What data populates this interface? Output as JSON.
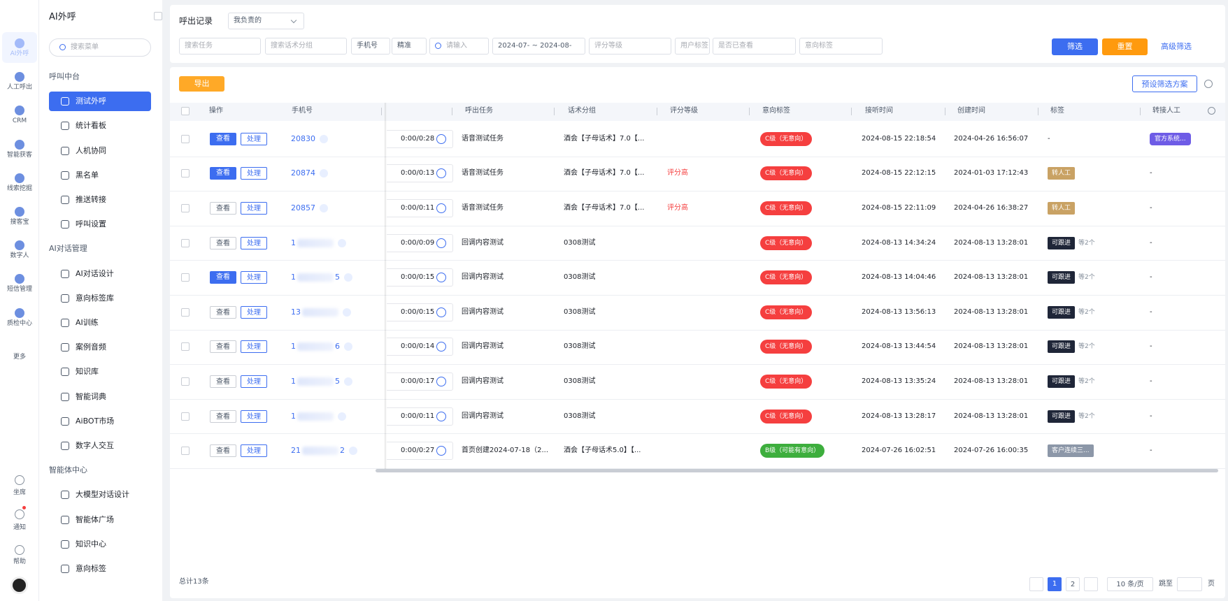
{
  "rail": {
    "items": [
      "AI外呼",
      "人工呼出",
      "CRM",
      "智能获客",
      "线索挖掘",
      "搜客宝",
      "数字人",
      "短信管理",
      "质检中心",
      "更多"
    ],
    "bottom": [
      "坐席",
      "通知",
      "帮助"
    ]
  },
  "sidebar": {
    "title": "AI外呼",
    "search": "搜索菜单",
    "groups": [
      {
        "title": "呼叫中台",
        "items": [
          "测试外呼",
          "统计看板",
          "人机协同",
          "黑名单",
          "推送转接",
          "呼叫设置"
        ]
      },
      {
        "title": "AI对话管理",
        "items": [
          "AI对话设计",
          "意向标签库",
          "AI训练",
          "案例音频",
          "知识库",
          "智能词典",
          "AiBOT市场",
          "数字人交互"
        ]
      },
      {
        "title": "智能体中心",
        "items": [
          "大模型对话设计",
          "智能体广场",
          "知识中心",
          "意向标签"
        ]
      }
    ]
  },
  "header": {
    "title": "呼出记录",
    "scope": "我负责的"
  },
  "filters": {
    "fields": [
      "搜索任务",
      "搜索话术分组",
      "手机号",
      "精准",
      "请输入",
      "2024-07- ~ 2024-08-",
      "评分等级",
      "用户标签",
      "是否已查看",
      "意向标签"
    ],
    "filter": "筛选",
    "reset": "重置",
    "advanced": "高级筛选"
  },
  "toolbar": {
    "export": "导出",
    "preset": "预设筛选方案"
  },
  "table": {
    "columns": [
      "操作",
      "手机号",
      "呼出任务",
      "话术分组",
      "评分等级",
      "意向标签",
      "接听时间",
      "创建时间",
      "标签",
      "转接人工"
    ],
    "rows": [
      {
        "view": "查看",
        "handle": "处理",
        "viewed": true,
        "phone": "20830",
        "duration": "0:00/0:28",
        "task": "语音测试任务",
        "group": "酒会【子母话术】7.0【...",
        "intent": "C级（无意向）",
        "intent_color": "#f53f3f",
        "answer_time": "2024-08-15 22:18:54",
        "create_time": "2024-04-26 16:56:07",
        "tag": "-",
        "transfer": "官方系统...",
        "transfer_color": "#6e5ce6"
      },
      {
        "view": "查看",
        "handle": "处理",
        "viewed": true,
        "phone": "20874",
        "duration": "0:00/0:13",
        "task": "语音测试任务",
        "group": "酒会【子母话术】7.0【...",
        "score": "评分高",
        "intent": "C级（无意向）",
        "intent_color": "#f53f3f",
        "answer_time": "2024-08-15 22:12:15",
        "create_time": "2024-01-03 17:12:43",
        "tag": "转人工",
        "tag_color": "#c9a264",
        "transfer": "-"
      },
      {
        "view": "查看",
        "handle": "处理",
        "viewed": false,
        "phone": "20857",
        "duration": "0:00/0:11",
        "task": "语音测试任务",
        "group": "酒会【子母话术】7.0【...",
        "score": "评分高",
        "intent": "C级（无意向）",
        "intent_color": "#f53f3f",
        "answer_time": "2024-08-15 22:11:09",
        "create_time": "2024-04-26 16:38:27",
        "tag": "转人工",
        "tag_color": "#c9a264",
        "transfer": "-"
      },
      {
        "view": "查看",
        "handle": "处理",
        "viewed": false,
        "phone": "1",
        "duration": "0:00/0:09",
        "task": "回调内容测试",
        "group": "0308测试",
        "intent": "C级（无意向）",
        "intent_color": "#f53f3f",
        "answer_time": "2024-08-13 14:34:24",
        "create_time": "2024-08-13 13:28:01",
        "tag": "可跟进",
        "tag_color": "#1f2638",
        "tag_extra": "等2个",
        "transfer": "-"
      },
      {
        "view": "查看",
        "handle": "处理",
        "viewed": true,
        "phone": "1",
        "phone_end": "5",
        "duration": "0:00/0:15",
        "task": "回调内容测试",
        "group": "0308测试",
        "intent": "C级（无意向）",
        "intent_color": "#f53f3f",
        "answer_time": "2024-08-13 14:04:46",
        "create_time": "2024-08-13 13:28:01",
        "tag": "可跟进",
        "tag_color": "#1f2638",
        "tag_extra": "等2个",
        "transfer": "-"
      },
      {
        "view": "查看",
        "handle": "处理",
        "viewed": false,
        "phone": "13",
        "duration": "0:00/0:15",
        "task": "回调内容测试",
        "group": "0308测试",
        "intent": "C级（无意向）",
        "intent_color": "#f53f3f",
        "answer_time": "2024-08-13 13:56:13",
        "create_time": "2024-08-13 13:28:01",
        "tag": "可跟进",
        "tag_color": "#1f2638",
        "tag_extra": "等2个",
        "transfer": "-"
      },
      {
        "view": "查看",
        "handle": "处理",
        "viewed": false,
        "phone": "1",
        "phone_end": "6",
        "duration": "0:00/0:14",
        "task": "回调内容测试",
        "group": "0308测试",
        "intent": "C级（无意向）",
        "intent_color": "#f53f3f",
        "answer_time": "2024-08-13 13:44:54",
        "create_time": "2024-08-13 13:28:01",
        "tag": "可跟进",
        "tag_color": "#1f2638",
        "tag_extra": "等2个",
        "transfer": "-"
      },
      {
        "view": "查看",
        "handle": "处理",
        "viewed": false,
        "phone": "1",
        "phone_end": "5",
        "duration": "0:00/0:17",
        "task": "回调内容测试",
        "group": "0308测试",
        "intent": "C级（无意向）",
        "intent_color": "#f53f3f",
        "answer_time": "2024-08-13 13:35:24",
        "create_time": "2024-08-13 13:28:01",
        "tag": "可跟进",
        "tag_color": "#1f2638",
        "tag_extra": "等2个",
        "transfer": "-"
      },
      {
        "view": "查看",
        "handle": "处理",
        "viewed": false,
        "phone": "1",
        "duration": "0:00/0:11",
        "task": "回调内容测试",
        "group": "0308测试",
        "intent": "C级（无意向）",
        "intent_color": "#f53f3f",
        "answer_time": "2024-08-13 13:28:17",
        "create_time": "2024-08-13 13:28:01",
        "tag": "可跟进",
        "tag_color": "#1f2638",
        "tag_extra": "等2个",
        "transfer": "-"
      },
      {
        "view": "查看",
        "handle": "处理",
        "viewed": false,
        "phone": "21",
        "phone_end": "2",
        "duration": "0:00/0:27",
        "task": "首页创建2024-07-18（2...",
        "group": "酒会【子母话术5.0】【...",
        "intent": "B级（可能有意向）",
        "intent_color": "#3dae3d",
        "answer_time": "2024-07-26 16:02:51",
        "create_time": "2024-07-26 16:00:35",
        "tag": "客户连续三...",
        "tag_color": "#8c97a8",
        "transfer": "-"
      }
    ]
  },
  "footer": {
    "total": "总计13条",
    "pages": [
      1,
      2
    ],
    "page_size": "10 条/页",
    "jump": "跳至",
    "unit": "页"
  }
}
